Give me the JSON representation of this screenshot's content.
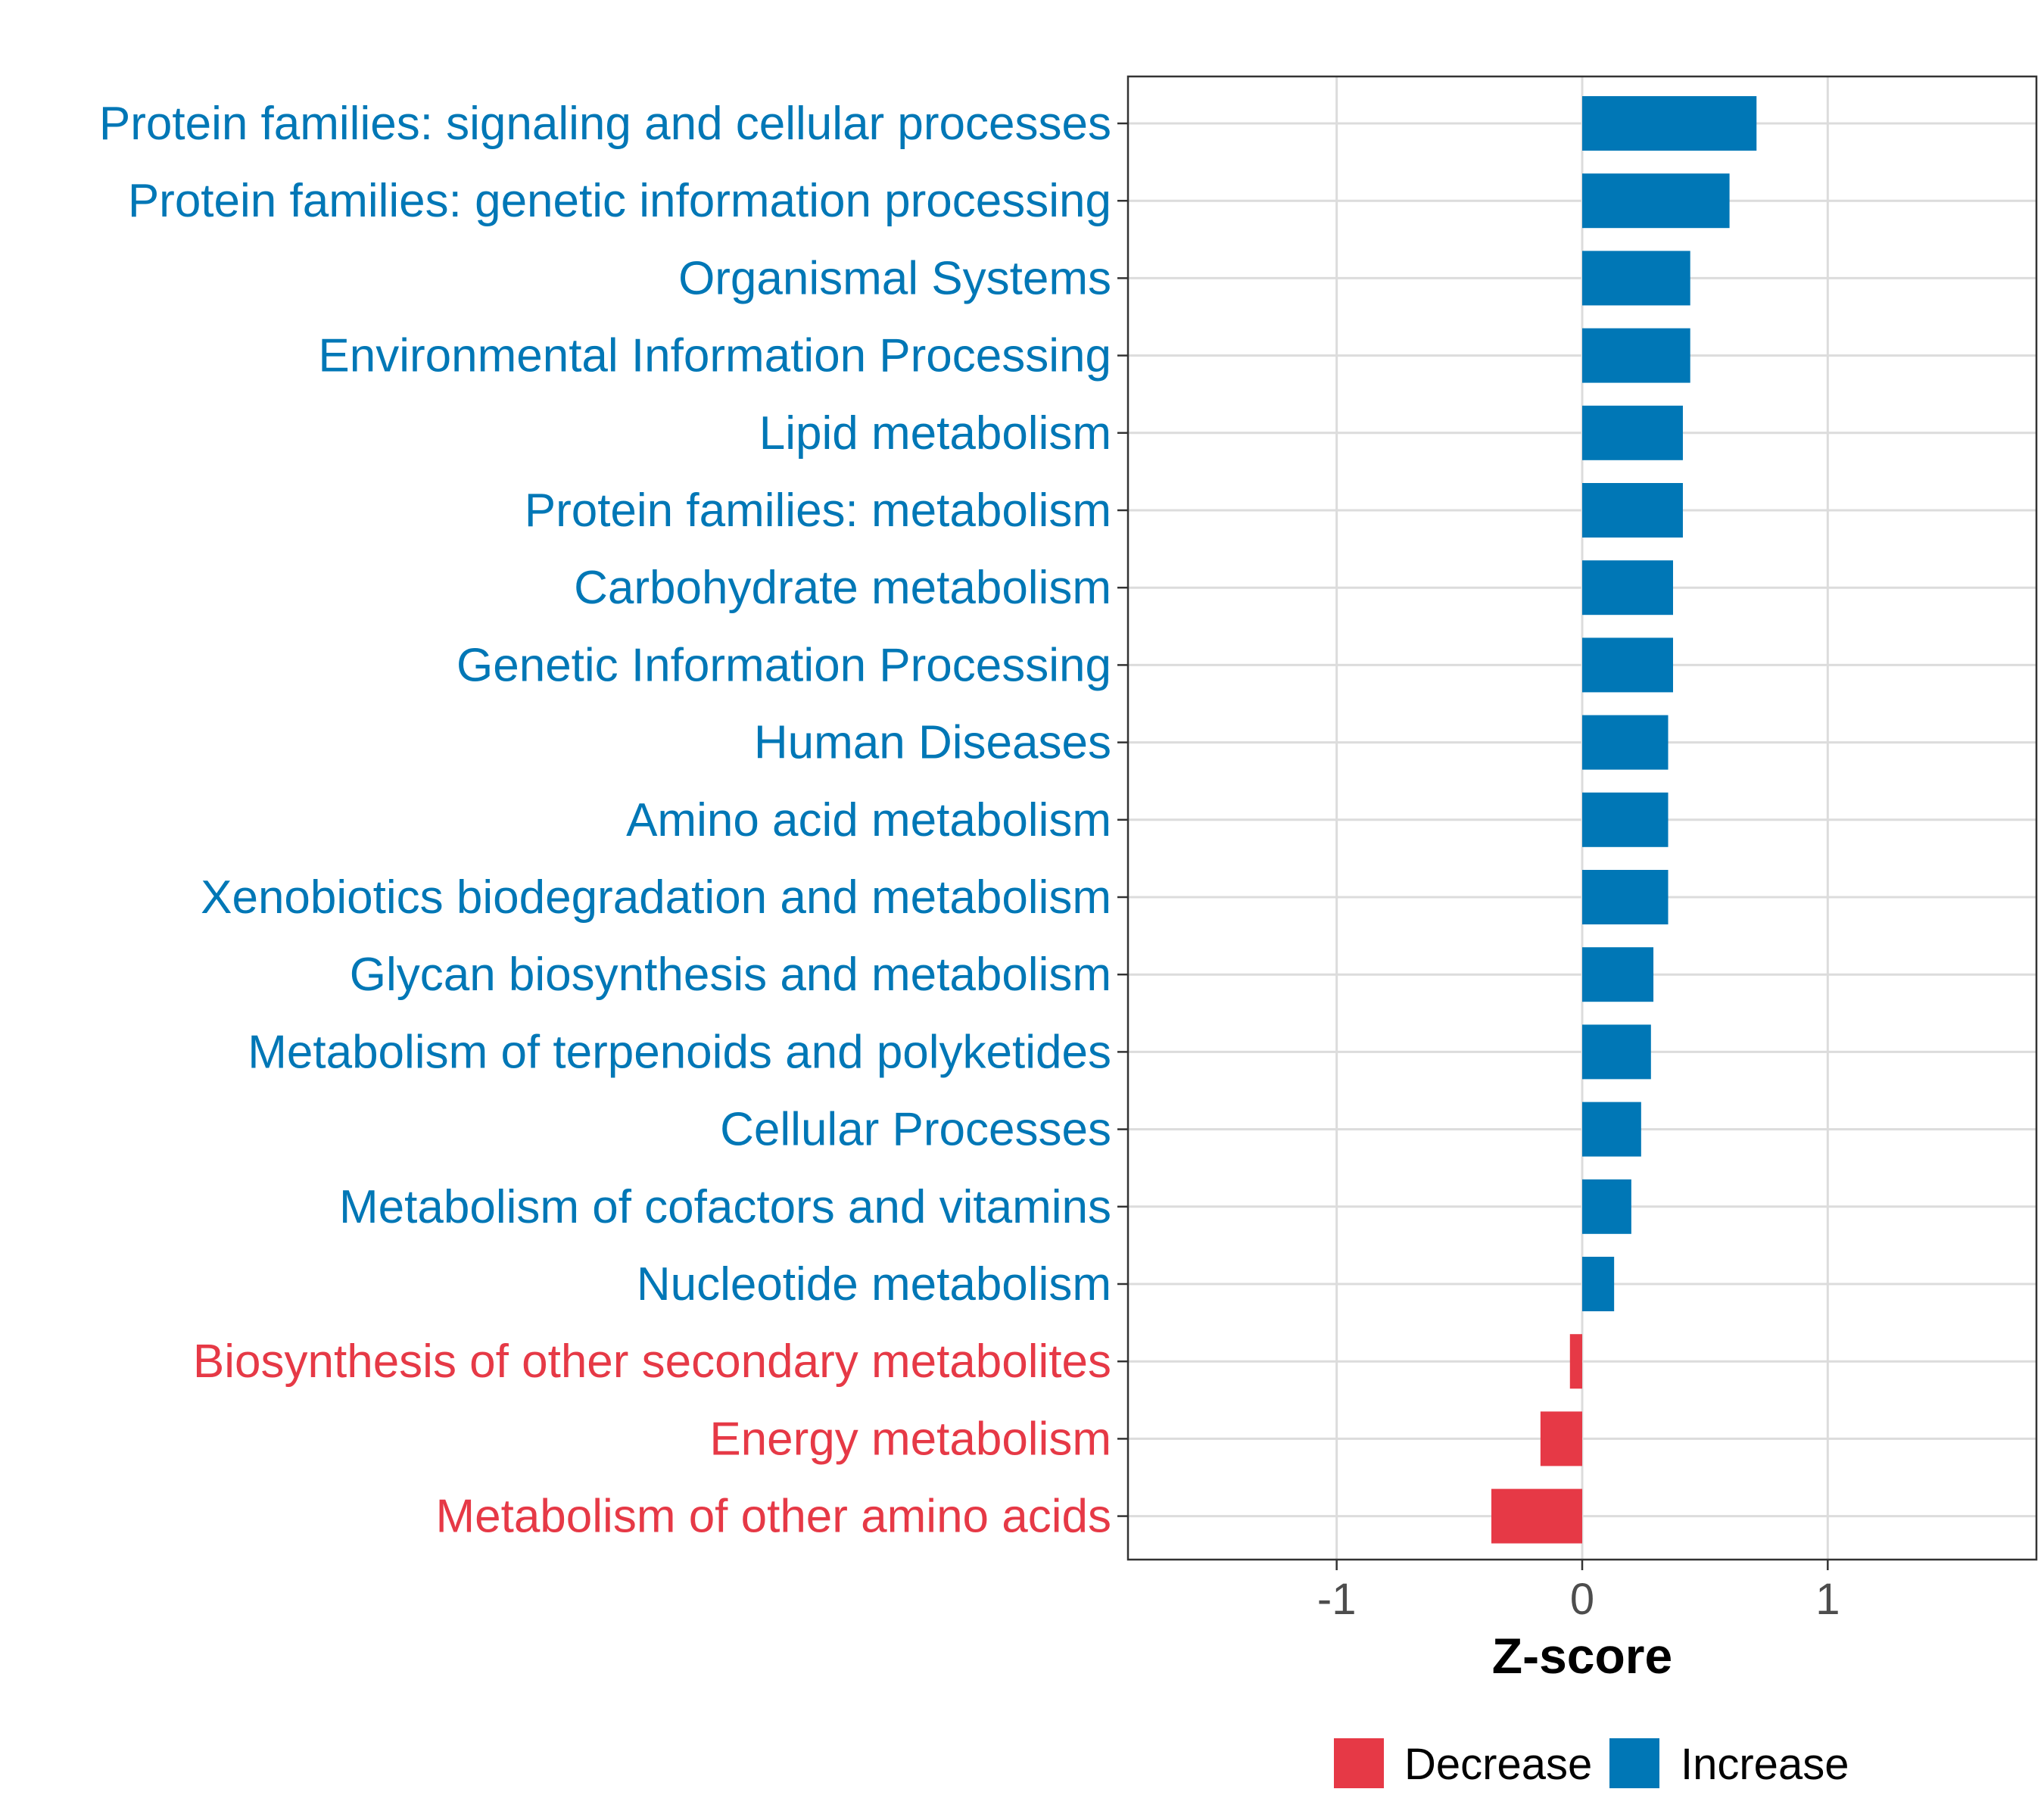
{
  "chart_data": {
    "type": "bar",
    "orientation": "horizontal",
    "xlabel": "Z-score",
    "xlim": [
      -1.85,
      1.85
    ],
    "xticks": [
      -1,
      0,
      1
    ],
    "xtick_labels": [
      "-1",
      "0",
      "1"
    ],
    "grid": true,
    "legend_position": "bottom",
    "colors": {
      "Decrease": "#e63946",
      "Increase": "#0077b6"
    },
    "legend": [
      {
        "key": "Decrease",
        "label": "Decrease"
      },
      {
        "key": "Increase",
        "label": "Increase"
      }
    ],
    "categories": [
      "Protein families: signaling and cellular processes",
      "Protein families: genetic information processing",
      "Organismal Systems",
      "Environmental Information Processing",
      "Lipid metabolism",
      "Protein families: metabolism",
      "Carbohydrate metabolism",
      "Genetic Information Processing",
      "Human Diseases",
      "Amino acid metabolism",
      "Xenobiotics biodegradation and metabolism",
      "Glycan biosynthesis and metabolism",
      "Metabolism of terpenoids and polyketides",
      "Cellular Processes",
      "Metabolism of cofactors and vitamins",
      "Nucleotide metabolism",
      "Biosynthesis of other secondary metabolites",
      "Energy metabolism",
      "Metabolism of other amino acids"
    ],
    "values": [
      0.71,
      0.6,
      0.44,
      0.44,
      0.41,
      0.41,
      0.37,
      0.37,
      0.35,
      0.35,
      0.35,
      0.29,
      0.28,
      0.24,
      0.2,
      0.13,
      -0.05,
      -0.17,
      -0.37
    ],
    "groups": [
      "Increase",
      "Increase",
      "Increase",
      "Increase",
      "Increase",
      "Increase",
      "Increase",
      "Increase",
      "Increase",
      "Increase",
      "Increase",
      "Increase",
      "Increase",
      "Increase",
      "Increase",
      "Increase",
      "Decrease",
      "Decrease",
      "Decrease"
    ]
  }
}
